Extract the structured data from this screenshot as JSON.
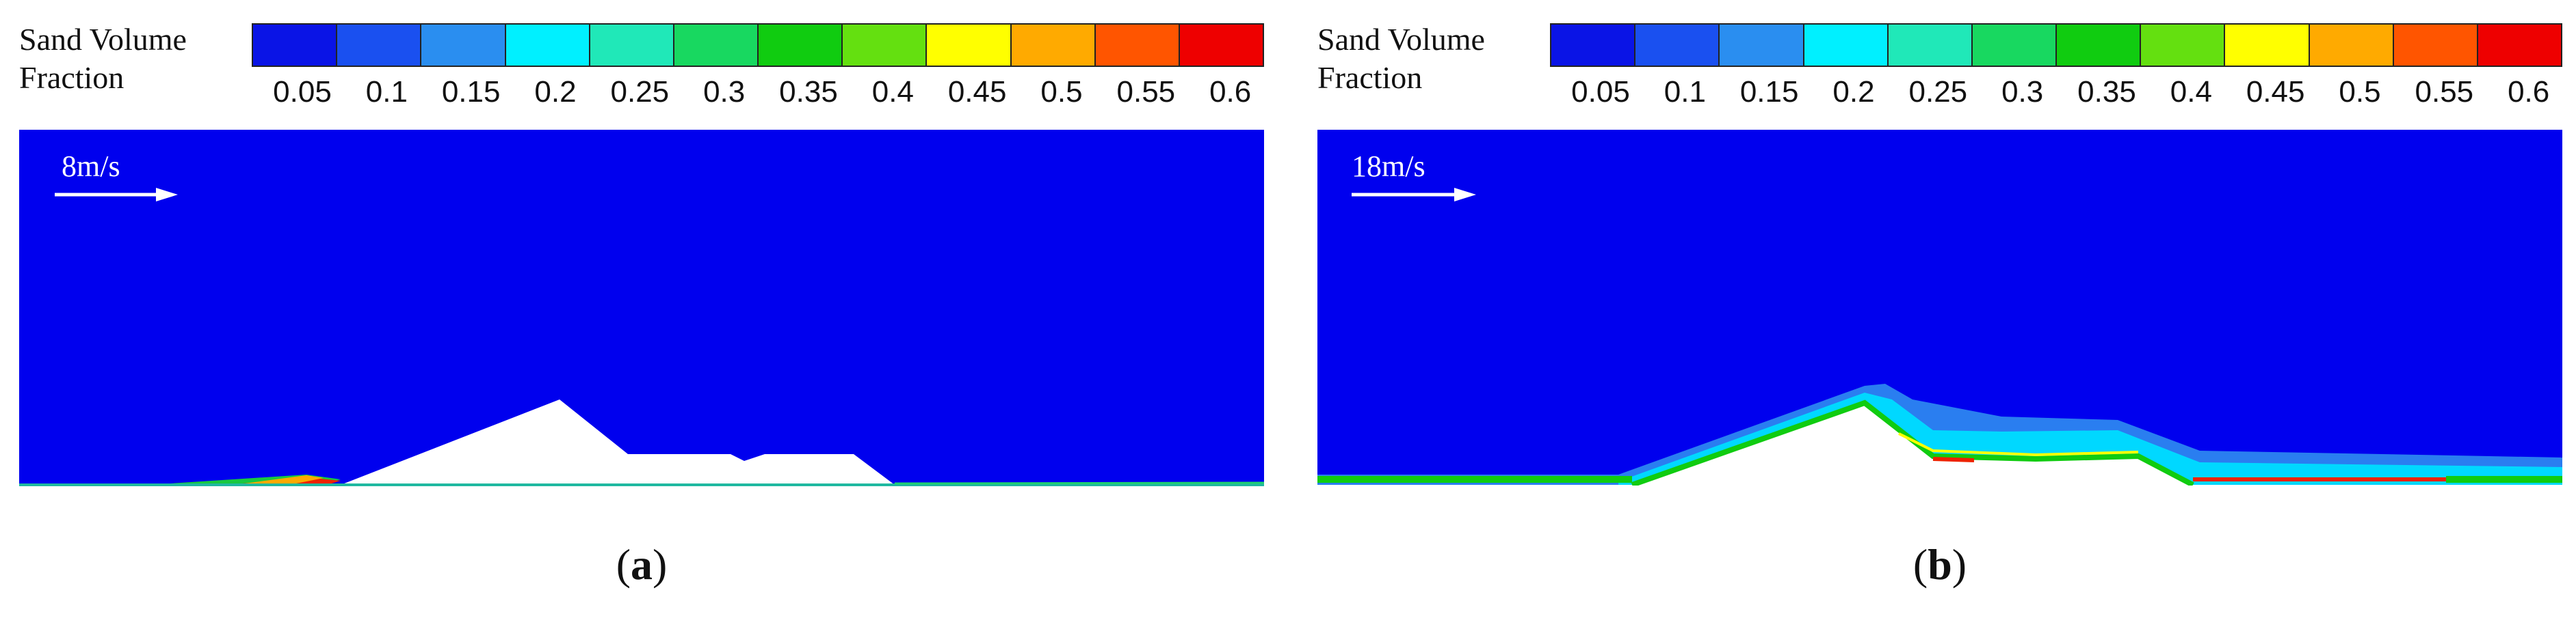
{
  "legend": {
    "title_line1": "Sand Volume",
    "title_line2": "Fraction",
    "ticks": [
      "0.05",
      "0.1",
      "0.15",
      "0.2",
      "0.25",
      "0.3",
      "0.35",
      "0.4",
      "0.45",
      "0.5",
      "0.55",
      "0.6"
    ],
    "colors": [
      "#0a14e6",
      "#1a50f0",
      "#2a8ef0",
      "#00f0ff",
      "#20e8b8",
      "#18d860",
      "#10cc10",
      "#64e010",
      "#ffff00",
      "#ffaa00",
      "#ff5500",
      "#ee0000"
    ]
  },
  "panels": [
    {
      "id": "a",
      "velocity_label": "8m/s",
      "caption_prefix": "(",
      "caption_letter": "a",
      "caption_suffix": ")"
    },
    {
      "id": "b",
      "velocity_label": "18m/s",
      "caption_prefix": "(",
      "caption_letter": "b",
      "caption_suffix": ")"
    }
  ],
  "colors": {
    "background_fluid": "#0000ee",
    "terrain": "#ffffff"
  }
}
